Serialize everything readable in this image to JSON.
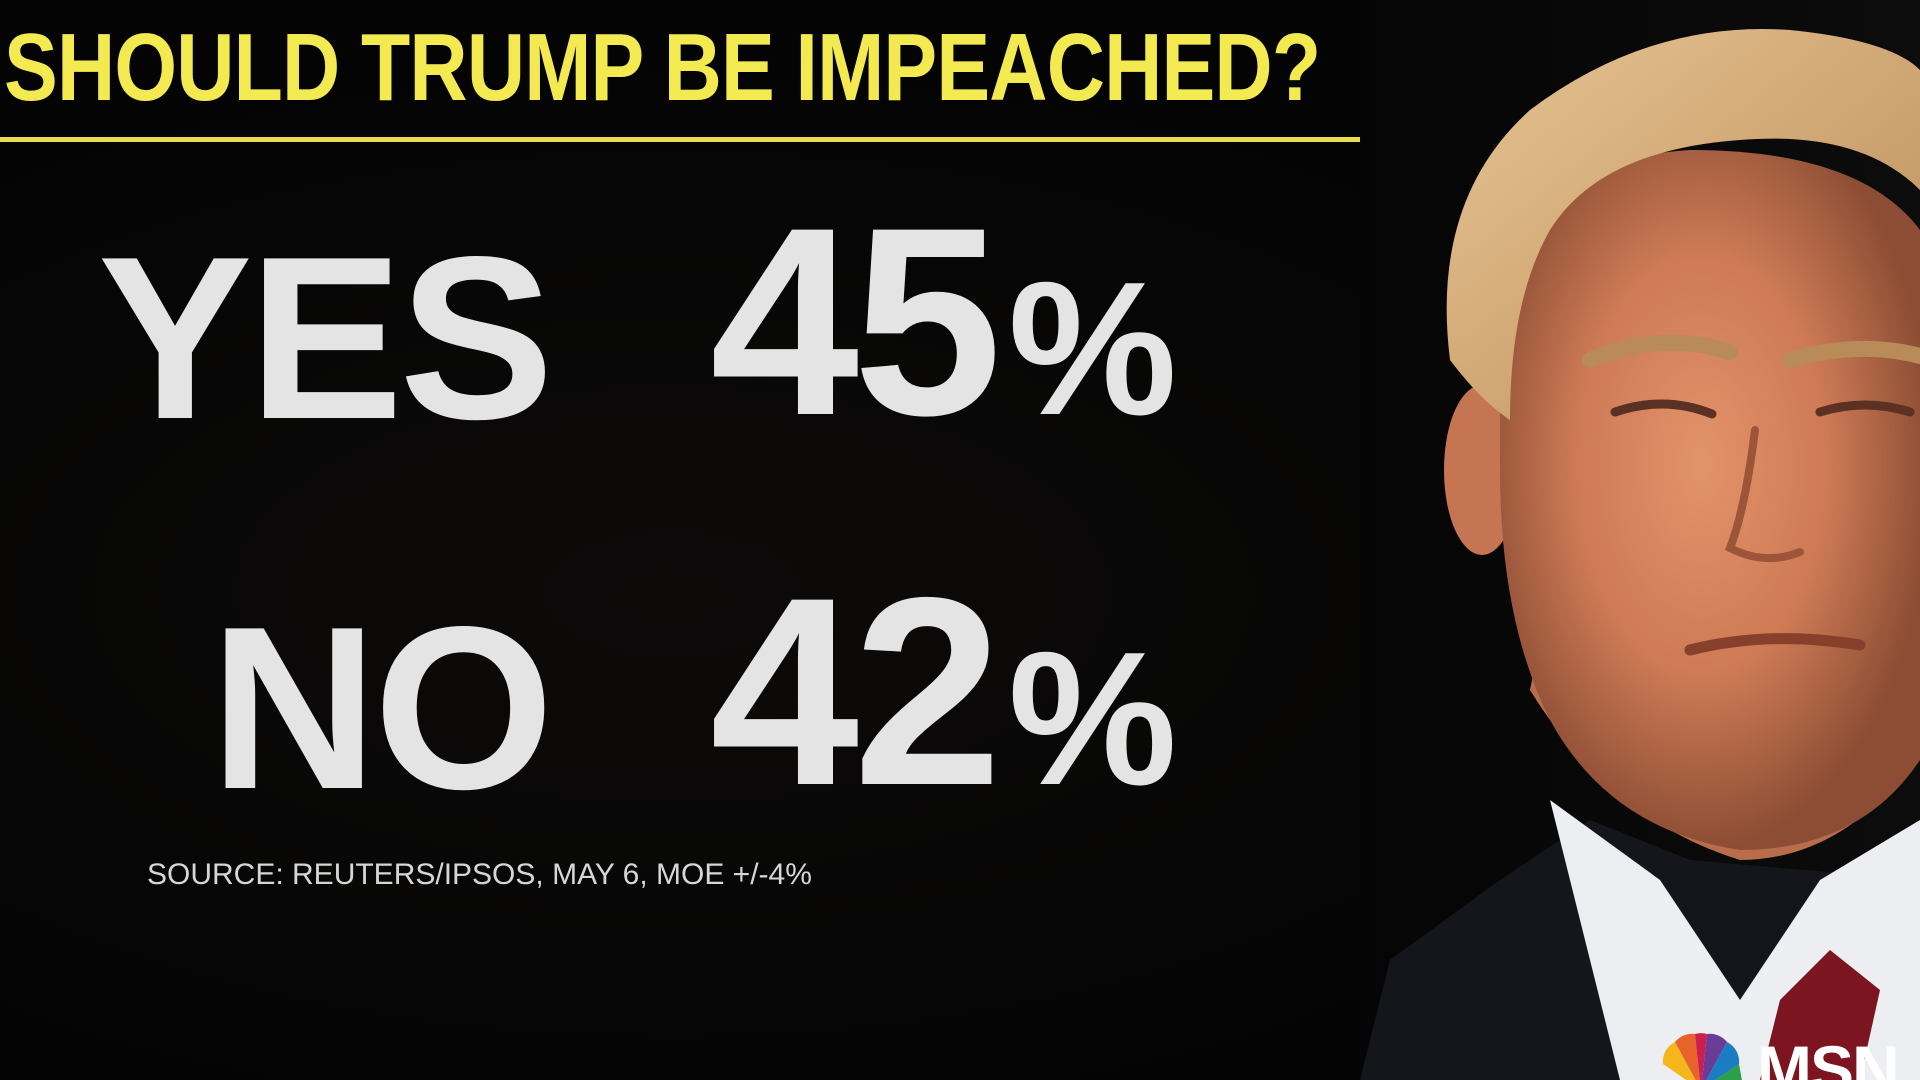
{
  "graphic": {
    "headline": "SHOULD TRUMP BE IMPEACHED?",
    "headline_color": "#f3ea52",
    "answers": [
      {
        "label": "YES",
        "value": "45",
        "unit": "%"
      },
      {
        "label": "NO",
        "value": "42",
        "unit": "%"
      }
    ],
    "source": "SOURCE: REUTERS/IPSOS, MAY 6, MOE +/-4%"
  },
  "network": {
    "logo_icon": "nbc-peacock-icon",
    "logo_text": "MSN"
  }
}
